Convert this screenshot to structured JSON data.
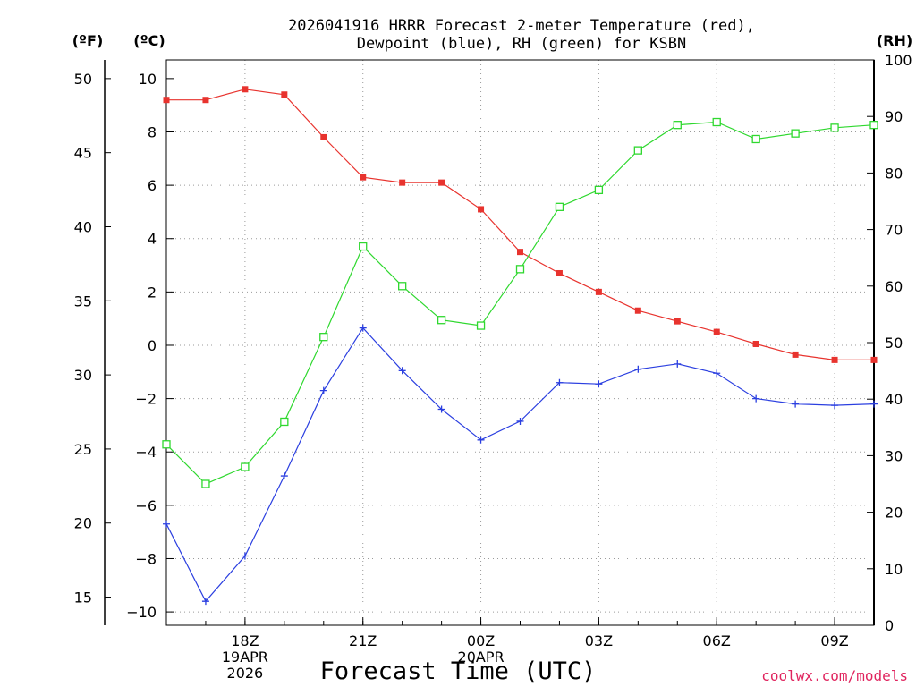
{
  "chart_data": {
    "type": "line",
    "title": "2026041916 HRRR Forecast 2-meter Temperature (red),",
    "subtitle": "Dewpoint (blue), RH (green) for KSBN",
    "xlabel": "Forecast Time (UTC)",
    "credit": "coolwx.com/models",
    "units": {
      "fahrenheit": "(ºF)",
      "celsius": "(ºC)",
      "rh": "(RH)"
    },
    "x_hours": [
      16,
      17,
      18,
      19,
      20,
      21,
      22,
      23,
      24,
      25,
      26,
      27,
      28,
      29,
      30,
      31,
      32,
      33,
      34
    ],
    "x_ticks": [
      {
        "hour": 18,
        "lines": [
          "18Z",
          "19APR",
          "2026"
        ]
      },
      {
        "hour": 21,
        "lines": [
          "21Z"
        ]
      },
      {
        "hour": 24,
        "lines": [
          "00Z",
          "20APR"
        ]
      },
      {
        "hour": 27,
        "lines": [
          "03Z"
        ]
      },
      {
        "hour": 30,
        "lines": [
          "06Z"
        ]
      },
      {
        "hour": 33,
        "lines": [
          "09Z"
        ]
      }
    ],
    "xlim": [
      16,
      34
    ],
    "celsius_axis": {
      "ylim": [
        -10.5,
        10.7
      ],
      "ticks": [
        -10,
        -8,
        -6,
        -4,
        -2,
        0,
        2,
        4,
        6,
        8,
        10
      ],
      "labels": [
        "−10",
        "−8",
        "−6",
        "−4",
        "−2",
        "0",
        "2",
        "4",
        "6",
        "8",
        "10"
      ]
    },
    "fahrenheit_axis": {
      "ticks": [
        15,
        20,
        25,
        30,
        35,
        40,
        45,
        50
      ],
      "labels": [
        "15",
        "20",
        "25",
        "30",
        "35",
        "40",
        "45",
        "50"
      ]
    },
    "rh_axis": {
      "ylim": [
        0,
        100
      ],
      "ticks": [
        0,
        10,
        20,
        30,
        40,
        50,
        60,
        70,
        80,
        90,
        100
      ],
      "labels": [
        "0",
        "10",
        "20",
        "30",
        "40",
        "50",
        "60",
        "70",
        "80",
        "90",
        "100"
      ]
    },
    "series": [
      {
        "name": "Temperature",
        "axis": "celsius",
        "color": "#e8332e",
        "marker": "filled-square",
        "values": [
          9.2,
          9.2,
          9.6,
          9.4,
          7.8,
          6.3,
          6.1,
          6.1,
          5.1,
          3.5,
          2.7,
          2.0,
          1.3,
          0.9,
          0.5,
          0.05,
          -0.35,
          -0.55,
          -0.55
        ]
      },
      {
        "name": "Dewpoint",
        "axis": "celsius",
        "color": "#2b3fe0",
        "marker": "plus",
        "values": [
          -6.7,
          -9.6,
          -7.9,
          -4.9,
          -1.7,
          0.65,
          -0.95,
          -2.4,
          -3.55,
          -2.85,
          -1.4,
          -1.45,
          -0.9,
          -0.7,
          -1.05,
          -2.0,
          -2.2,
          -2.25,
          -2.2
        ]
      },
      {
        "name": "RH",
        "axis": "rh",
        "color": "#2fd82f",
        "marker": "open-square",
        "values": [
          32,
          25,
          28,
          36,
          51,
          67,
          60,
          54,
          53,
          63,
          74,
          77,
          84,
          88.5,
          89,
          86,
          87,
          88,
          88.5
        ]
      }
    ]
  }
}
